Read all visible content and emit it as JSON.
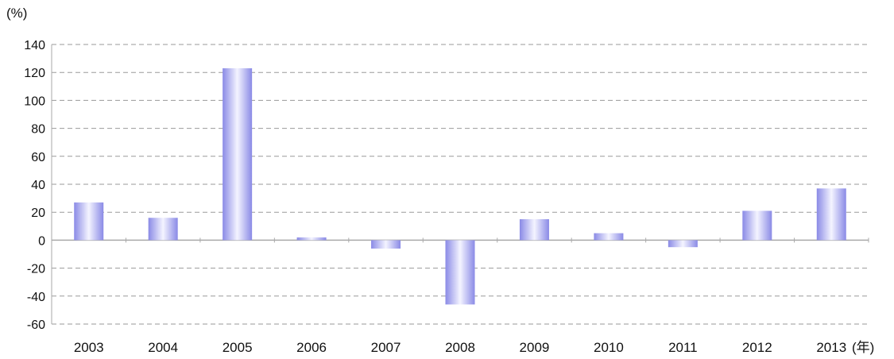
{
  "chart_data": {
    "type": "bar",
    "ylabel": "(%)",
    "xlabel": "(年)",
    "categories": [
      "2003",
      "2004",
      "2005",
      "2006",
      "2007",
      "2008",
      "2009",
      "2010",
      "2011",
      "2012",
      "2013"
    ],
    "values": [
      27,
      16,
      123,
      2,
      -6,
      -46,
      15,
      5,
      -5,
      21,
      37
    ],
    "ylim": [
      -60,
      140
    ],
    "yticks": [
      "140",
      "120",
      "100",
      "80",
      "60",
      "40",
      "20",
      "0",
      "-20",
      "-40",
      "-60"
    ],
    "grid": "horizontal-dashed",
    "colors": {
      "bar_edge": "#8a8ae6",
      "bar_center": "#f4f4ff",
      "grid": "#9a9a9a",
      "axis": "#aaaaaa"
    }
  }
}
